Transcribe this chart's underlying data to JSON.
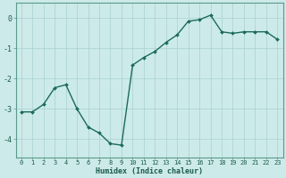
{
  "xlabel": "Humidex (Indice chaleur)",
  "x": [
    0,
    1,
    2,
    3,
    4,
    5,
    6,
    7,
    8,
    9,
    10,
    11,
    12,
    13,
    14,
    15,
    16,
    17,
    18,
    19,
    20,
    21,
    22,
    23
  ],
  "y": [
    -3.1,
    -3.1,
    -2.85,
    -2.3,
    -2.2,
    -3.0,
    -3.6,
    -3.8,
    -4.15,
    -4.2,
    -1.55,
    -1.3,
    -1.1,
    -0.8,
    -0.55,
    -0.1,
    -0.05,
    0.1,
    -0.45,
    -0.5,
    -0.45,
    -0.45,
    -0.45,
    -0.7
  ],
  "line_color": "#1a6b5a",
  "marker": "D",
  "marker_size": 2.0,
  "bg_color": "#cdeaea",
  "grid_color": "#aed4d4",
  "spine_color": "#5a9a8a",
  "tick_color": "#1a6b5a",
  "label_color": "#1a5a4a",
  "ylim": [
    -4.6,
    0.5
  ],
  "xlim": [
    -0.5,
    23.5
  ],
  "yticks": [
    0,
    -1,
    -2,
    -3,
    -4
  ],
  "xticks": [
    0,
    1,
    2,
    3,
    4,
    5,
    6,
    7,
    8,
    9,
    10,
    11,
    12,
    13,
    14,
    15,
    16,
    17,
    18,
    19,
    20,
    21,
    22,
    23
  ],
  "xlabel_fontsize": 6.0,
  "ylabel_fontsize": 6.5,
  "xtick_fontsize": 5.0,
  "ytick_fontsize": 6.0
}
